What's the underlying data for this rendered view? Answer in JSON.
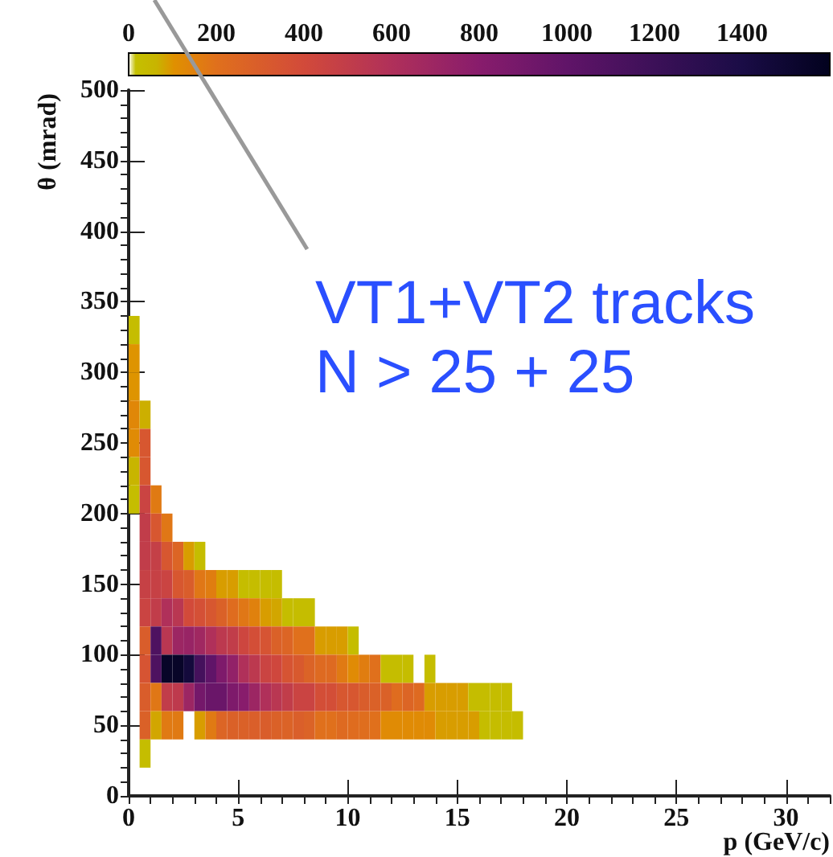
{
  "chart_data": {
    "type": "heatmap",
    "xlabel": "p (GeV/c)",
    "ylabel": "θ (mrad)",
    "annotations": [
      "VT1+VT2 tracks",
      "N > 25 + 25"
    ],
    "x": [
      0.25,
      0.75,
      1.25,
      1.75,
      2.25,
      2.75,
      3.25,
      3.75,
      4.25,
      4.75,
      5.25,
      5.75,
      6.25,
      6.75,
      7.25,
      7.75,
      8.25,
      8.75,
      9.25,
      9.75,
      10.25,
      10.75,
      11.25,
      11.75,
      12.25,
      12.75,
      13.25,
      13.75,
      14.25,
      14.75,
      15.25,
      15.75,
      16.25,
      16.75,
      17.25,
      17.75
    ],
    "y": [
      330,
      310,
      290,
      270,
      250,
      230,
      210,
      190,
      170,
      150,
      130,
      110,
      90,
      70,
      50,
      30
    ],
    "cells": [
      [
        30,
        null,
        null,
        null,
        null,
        null,
        null,
        null,
        null,
        null,
        null,
        null,
        null,
        null,
        null,
        null,
        null,
        null,
        null,
        null,
        null,
        null,
        null,
        null,
        null,
        null,
        null,
        null,
        null,
        null,
        null,
        null,
        null,
        null,
        null,
        null
      ],
      [
        100,
        null,
        null,
        null,
        null,
        null,
        null,
        null,
        null,
        null,
        null,
        null,
        null,
        null,
        null,
        null,
        null,
        null,
        null,
        null,
        null,
        null,
        null,
        null,
        null,
        null,
        null,
        null,
        null,
        null,
        null,
        null,
        null,
        null,
        null,
        null
      ],
      [
        100,
        null,
        null,
        null,
        null,
        null,
        null,
        null,
        null,
        null,
        null,
        null,
        null,
        null,
        null,
        null,
        null,
        null,
        null,
        null,
        null,
        null,
        null,
        null,
        null,
        null,
        null,
        null,
        null,
        null,
        null,
        null,
        null,
        null,
        null,
        null
      ],
      [
        130,
        70,
        null,
        null,
        null,
        null,
        null,
        null,
        null,
        null,
        null,
        null,
        null,
        null,
        null,
        null,
        null,
        null,
        null,
        null,
        null,
        null,
        null,
        null,
        null,
        null,
        null,
        null,
        null,
        null,
        null,
        null,
        null,
        null,
        null,
        null
      ],
      [
        120,
        330,
        null,
        null,
        null,
        null,
        null,
        null,
        null,
        null,
        null,
        null,
        null,
        null,
        null,
        null,
        null,
        null,
        null,
        null,
        null,
        null,
        null,
        null,
        null,
        null,
        null,
        null,
        null,
        null,
        null,
        null,
        null,
        null,
        null,
        null
      ],
      [
        60,
        330,
        null,
        null,
        null,
        null,
        null,
        null,
        null,
        null,
        null,
        null,
        null,
        null,
        null,
        null,
        null,
        null,
        null,
        null,
        null,
        null,
        null,
        null,
        null,
        null,
        null,
        null,
        null,
        null,
        null,
        null,
        null,
        null,
        null,
        null
      ],
      [
        30,
        450,
        170,
        null,
        null,
        null,
        null,
        null,
        null,
        null,
        null,
        null,
        null,
        null,
        null,
        null,
        null,
        null,
        null,
        null,
        null,
        null,
        null,
        null,
        null,
        null,
        null,
        null,
        null,
        null,
        null,
        null,
        null,
        null,
        null,
        null
      ],
      [
        null,
        500,
        330,
        180,
        null,
        null,
        null,
        null,
        null,
        null,
        null,
        null,
        null,
        null,
        null,
        null,
        null,
        null,
        null,
        null,
        null,
        null,
        null,
        null,
        null,
        null,
        null,
        null,
        null,
        null,
        null,
        null,
        null,
        null,
        null,
        null
      ],
      [
        null,
        500,
        480,
        330,
        260,
        90,
        30,
        null,
        null,
        null,
        null,
        null,
        null,
        null,
        null,
        null,
        null,
        null,
        null,
        null,
        null,
        null,
        null,
        null,
        null,
        null,
        null,
        null,
        null,
        null,
        null,
        null,
        null,
        null,
        null,
        null
      ],
      [
        null,
        470,
        470,
        450,
        330,
        300,
        180,
        160,
        90,
        90,
        30,
        30,
        30,
        30,
        null,
        null,
        null,
        null,
        null,
        null,
        null,
        null,
        null,
        null,
        null,
        null,
        null,
        null,
        null,
        null,
        null,
        null,
        null,
        null,
        null,
        null
      ],
      [
        null,
        450,
        500,
        600,
        550,
        400,
        370,
        330,
        280,
        220,
        180,
        150,
        90,
        80,
        30,
        30,
        30,
        null,
        null,
        null,
        null,
        null,
        null,
        null,
        null,
        null,
        null,
        null,
        null,
        null,
        null,
        null,
        null,
        null,
        null,
        null
      ],
      [
        null,
        300,
        1100,
        550,
        700,
        720,
        680,
        600,
        530,
        500,
        430,
        380,
        350,
        280,
        260,
        200,
        200,
        90,
        90,
        90,
        30,
        null,
        null,
        null,
        null,
        null,
        null,
        null,
        null,
        null,
        null,
        null,
        null,
        null,
        null,
        null
      ],
      [
        null,
        350,
        1100,
        1550,
        1550,
        1450,
        1150,
        1000,
        850,
        750,
        600,
        530,
        450,
        420,
        350,
        320,
        270,
        230,
        230,
        170,
        120,
        160,
        200,
        30,
        30,
        30,
        null,
        30,
        null,
        null,
        null,
        null,
        null,
        null,
        null,
        null
      ],
      [
        null,
        300,
        180,
        500,
        520,
        700,
        900,
        950,
        950,
        850,
        800,
        700,
        600,
        550,
        500,
        450,
        450,
        380,
        380,
        330,
        330,
        300,
        280,
        280,
        220,
        260,
        230,
        90,
        90,
        90,
        90,
        30,
        30,
        30,
        30,
        null
      ],
      [
        null,
        280,
        80,
        170,
        170,
        null,
        90,
        170,
        260,
        280,
        280,
        290,
        300,
        280,
        270,
        290,
        270,
        200,
        200,
        230,
        220,
        210,
        200,
        120,
        120,
        120,
        120,
        120,
        90,
        90,
        90,
        90,
        30,
        30,
        30,
        30
      ],
      [
        null,
        30,
        null,
        null,
        null,
        null,
        null,
        null,
        null,
        null,
        null,
        null,
        null,
        null,
        null,
        null,
        null,
        null,
        null,
        null,
        null,
        null,
        null,
        null,
        null,
        null,
        null,
        null,
        null,
        null,
        null,
        null,
        null,
        null,
        null,
        null
      ]
    ],
    "xlim": [
      0,
      32
    ],
    "xticks": [
      0,
      5,
      10,
      15,
      20,
      25,
      30
    ],
    "ylim": [
      0,
      500
    ],
    "yticks": [
      0,
      50,
      100,
      150,
      200,
      250,
      300,
      350,
      400,
      450,
      500
    ],
    "clim": [
      0,
      1600
    ],
    "cticks": [
      0,
      200,
      400,
      600,
      800,
      1000,
      1200,
      1400
    ]
  }
}
